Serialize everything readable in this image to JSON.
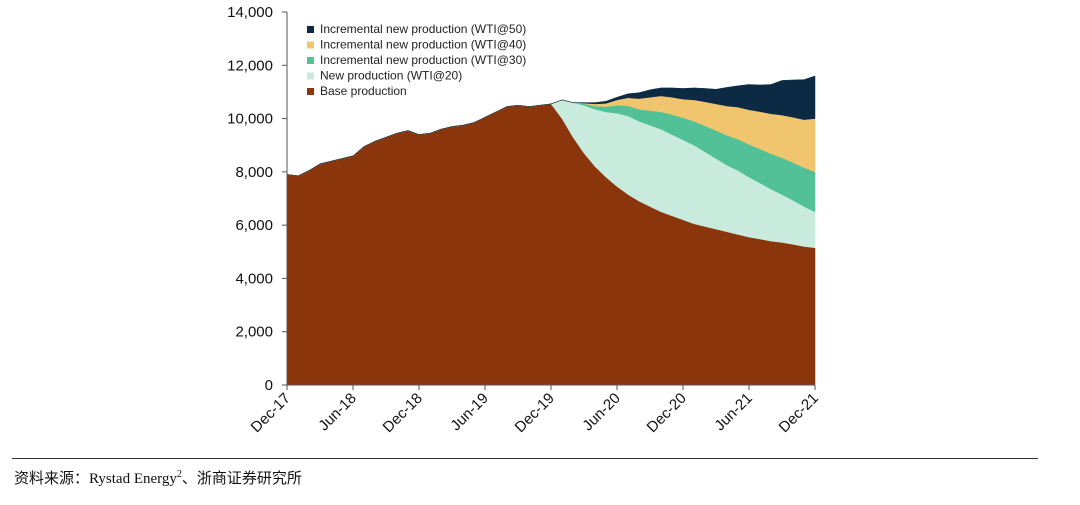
{
  "chart_data": {
    "type": "area",
    "stacked": true,
    "title": "",
    "xlabel": "",
    "ylabel": "",
    "ylim": [
      0,
      14000
    ],
    "yticks": [
      0,
      2000,
      4000,
      6000,
      8000,
      10000,
      12000,
      14000
    ],
    "ytick_labels": [
      "0",
      "2,000",
      "4,000",
      "6,000",
      "8,000",
      "10,000",
      "12,000",
      "14,000"
    ],
    "xticks": [
      "Dec-17",
      "Jun-18",
      "Dec-18",
      "Jun-19",
      "Dec-19",
      "Jun-20",
      "Dec-20",
      "Jun-21",
      "Dec-21"
    ],
    "x": [
      "Dec-17",
      "Jan-18",
      "Feb-18",
      "Mar-18",
      "Apr-18",
      "May-18",
      "Jun-18",
      "Jul-18",
      "Aug-18",
      "Sep-18",
      "Oct-18",
      "Nov-18",
      "Dec-18",
      "Jan-19",
      "Feb-19",
      "Mar-19",
      "Apr-19",
      "May-19",
      "Jun-19",
      "Jul-19",
      "Aug-19",
      "Sep-19",
      "Oct-19",
      "Nov-19",
      "Dec-19",
      "Jan-20",
      "Feb-20",
      "Mar-20",
      "Apr-20",
      "May-20",
      "Jun-20",
      "Jul-20",
      "Aug-20",
      "Sep-20",
      "Oct-20",
      "Nov-20",
      "Dec-20",
      "Jan-21",
      "Feb-21",
      "Mar-21",
      "Apr-21",
      "May-21",
      "Jun-21",
      "Jul-21",
      "Aug-21",
      "Sep-21",
      "Oct-21",
      "Nov-21",
      "Dec-21"
    ],
    "grid": false,
    "legend_position": "top-left",
    "series": [
      {
        "name": "Base production",
        "color": "#8B350D",
        "values": [
          7900,
          7850,
          8050,
          8300,
          8400,
          8500,
          8600,
          8950,
          9150,
          9300,
          9450,
          9550,
          9400,
          9450,
          9600,
          9700,
          9750,
          9850,
          10050,
          10250,
          10450,
          10500,
          10450,
          10500,
          10550,
          10000,
          9300,
          8700,
          8200,
          7800,
          7450,
          7150,
          6900,
          6700,
          6500,
          6350,
          6200,
          6050,
          5950,
          5850,
          5750,
          5650,
          5550,
          5480,
          5400,
          5350,
          5280,
          5200,
          5150
        ]
      },
      {
        "name": "New production (WTI@20)",
        "color": "#C8EBDD",
        "values": [
          0,
          0,
          0,
          0,
          0,
          0,
          0,
          0,
          0,
          0,
          0,
          0,
          0,
          0,
          0,
          0,
          0,
          0,
          0,
          0,
          0,
          0,
          0,
          0,
          0,
          700,
          1300,
          1800,
          2150,
          2450,
          2750,
          2950,
          3000,
          3050,
          3100,
          3050,
          3000,
          2950,
          2800,
          2650,
          2500,
          2400,
          2250,
          2100,
          1950,
          1800,
          1650,
          1500,
          1350
        ]
      },
      {
        "name": "Incremental new production (WTI@30)",
        "color": "#52C198",
        "values": [
          0,
          0,
          0,
          0,
          0,
          0,
          0,
          0,
          0,
          0,
          0,
          0,
          0,
          0,
          0,
          0,
          0,
          0,
          0,
          0,
          0,
          0,
          0,
          0,
          0,
          0,
          0,
          60,
          120,
          200,
          300,
          380,
          450,
          550,
          650,
          750,
          830,
          900,
          980,
          1050,
          1120,
          1180,
          1230,
          1280,
          1330,
          1380,
          1420,
          1460,
          1500
        ]
      },
      {
        "name": "Incremental new production (WTI@40)",
        "color": "#F0C56E",
        "values": [
          0,
          0,
          0,
          0,
          0,
          0,
          0,
          0,
          0,
          0,
          0,
          0,
          0,
          0,
          0,
          0,
          0,
          0,
          0,
          0,
          0,
          0,
          0,
          0,
          0,
          0,
          0,
          20,
          80,
          120,
          200,
          300,
          400,
          500,
          600,
          650,
          700,
          800,
          900,
          1000,
          1100,
          1200,
          1300,
          1400,
          1500,
          1600,
          1700,
          1800,
          2000
        ]
      },
      {
        "name": "Incremental new production (WTI@50)",
        "color": "#0D2A45",
        "values": [
          0,
          0,
          0,
          0,
          0,
          0,
          0,
          0,
          0,
          0,
          0,
          0,
          0,
          0,
          0,
          0,
          0,
          0,
          0,
          0,
          0,
          0,
          0,
          0,
          0,
          0,
          0,
          20,
          50,
          80,
          100,
          150,
          220,
          280,
          300,
          350,
          400,
          450,
          500,
          550,
          700,
          800,
          950,
          1000,
          1100,
          1300,
          1400,
          1500,
          1600
        ]
      }
    ],
    "legend_order": [
      "Incremental new production (WTI@50)",
      "Incremental new production (WTI@40)",
      "Incremental new production (WTI@30)",
      "New production (WTI@20)",
      "Base production"
    ]
  },
  "source": {
    "text": "资料来源：Rystad Energy",
    "superscript": "2",
    "suffix": "、浙商证券研究所"
  }
}
